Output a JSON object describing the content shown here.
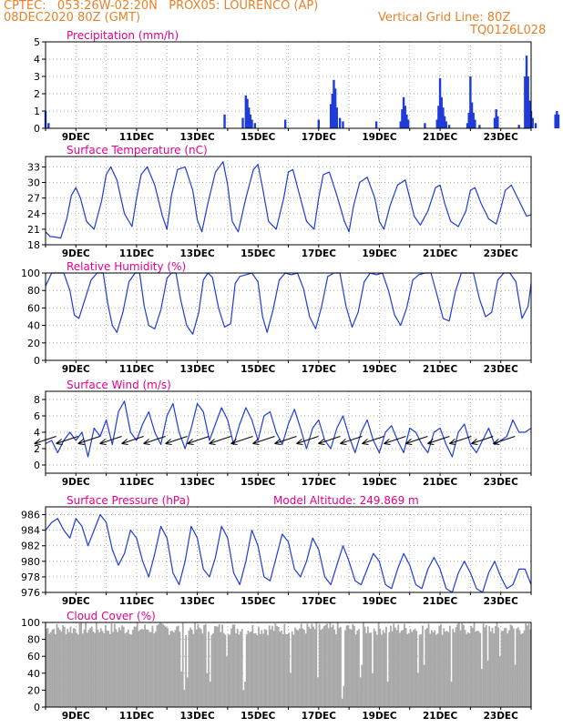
{
  "header": {
    "line1": "CPTEC:   053:26W-02:20N   PROX05: LOURENCO (AP)",
    "line2": "08DEC2020 80Z (GMT)",
    "grid_note": "Vertical Grid Line: 80Z",
    "code": "TQ0126L028"
  },
  "colors": {
    "header": "#e8822a",
    "title": "#e6008c",
    "series": "#1f3bd8",
    "cloud": "#a9a9a9",
    "grid": "#999999"
  },
  "chart_data": [
    {
      "type": "bar",
      "title": "Precipitation (mm/h)",
      "xlabel": "",
      "ylabel": "",
      "ylim": [
        0,
        5
      ],
      "yticks": [
        0,
        1,
        2,
        3,
        4,
        5
      ],
      "xtick_labels": [
        "9DEC",
        "11DEC",
        "13DEC",
        "15DEC",
        "17DEC",
        "19DEC",
        "21DEC",
        "23DEC"
      ],
      "grid": true,
      "bars": [
        [
          8.0,
          1.0
        ],
        [
          8.1,
          0.3
        ],
        [
          13.9,
          0.8
        ],
        [
          14.5,
          0.6
        ],
        [
          14.6,
          1.9
        ],
        [
          14.65,
          1.7
        ],
        [
          14.7,
          1.2
        ],
        [
          14.75,
          0.8
        ],
        [
          14.8,
          0.5
        ],
        [
          14.9,
          0.3
        ],
        [
          15.9,
          0.5
        ],
        [
          17.0,
          0.5
        ],
        [
          17.4,
          1.4
        ],
        [
          17.45,
          2.0
        ],
        [
          17.5,
          2.8
        ],
        [
          17.55,
          2.3
        ],
        [
          17.6,
          1.2
        ],
        [
          17.7,
          0.6
        ],
        [
          17.8,
          0.4
        ],
        [
          18.9,
          0.4
        ],
        [
          19.7,
          0.4
        ],
        [
          19.75,
          1.1
        ],
        [
          19.8,
          1.8
        ],
        [
          19.85,
          1.3
        ],
        [
          19.9,
          0.8
        ],
        [
          19.95,
          0.5
        ],
        [
          20.5,
          0.3
        ],
        [
          20.9,
          0.5
        ],
        [
          20.95,
          1.3
        ],
        [
          21.0,
          2.9
        ],
        [
          21.05,
          1.8
        ],
        [
          21.1,
          1.2
        ],
        [
          21.15,
          0.7
        ],
        [
          21.2,
          0.4
        ],
        [
          21.3,
          0.2
        ],
        [
          21.9,
          0.3
        ],
        [
          21.95,
          0.9
        ],
        [
          22.0,
          3.0
        ],
        [
          22.05,
          1.5
        ],
        [
          22.1,
          0.9
        ],
        [
          22.15,
          0.5
        ],
        [
          22.3,
          0.2
        ],
        [
          22.8,
          0.6
        ],
        [
          22.85,
          1.1
        ],
        [
          22.9,
          0.7
        ],
        [
          23.6,
          0.2
        ],
        [
          23.8,
          3.0
        ],
        [
          23.85,
          4.2
        ],
        [
          23.9,
          3.0
        ],
        [
          23.95,
          1.6
        ],
        [
          24.0,
          1.0
        ],
        [
          24.05,
          0.6
        ],
        [
          24.15,
          0.3
        ],
        [
          24.8,
          0.8
        ],
        [
          24.85,
          1.0
        ],
        [
          24.9,
          0.8
        ]
      ]
    },
    {
      "type": "line",
      "title": "Surface Temperature (nC)",
      "ylim": [
        18,
        35
      ],
      "yticks": [
        18,
        21,
        24,
        27,
        30,
        33
      ],
      "xtick_labels": [
        "9DEC",
        "11DEC",
        "13DEC",
        "15DEC",
        "17DEC",
        "19DEC",
        "21DEC",
        "23DEC"
      ],
      "grid": true,
      "series": [
        {
          "x": [
            8.0,
            8.15,
            8.3,
            8.5,
            8.7,
            8.85,
            9.0,
            9.15,
            9.35,
            9.6,
            9.85,
            10.0,
            10.15,
            10.35,
            10.6,
            10.85,
            11.0,
            11.15,
            11.35,
            11.6,
            11.85,
            12.0,
            12.15,
            12.35,
            12.6,
            12.85,
            13.0,
            13.15,
            13.35,
            13.6,
            13.85,
            14.0,
            14.15,
            14.35,
            14.6,
            14.85,
            15.0,
            15.15,
            15.35,
            15.6,
            15.85,
            16.0,
            16.15,
            16.35,
            16.6,
            16.85,
            17.0,
            17.15,
            17.35,
            17.6,
            17.85,
            18.0,
            18.15,
            18.35,
            18.6,
            18.85,
            19.0,
            19.15,
            19.35,
            19.6,
            19.85,
            20.0,
            20.15,
            20.35,
            20.6,
            20.85,
            21.0,
            21.15,
            21.35,
            21.6,
            21.85,
            22.0,
            22.15,
            22.35,
            22.6,
            22.85,
            23.0,
            23.15,
            23.35,
            23.6,
            23.85,
            24.0
          ],
          "y": [
            20.5,
            19.6,
            19.5,
            19.3,
            23.0,
            27.5,
            29.0,
            27.0,
            22.5,
            21.0,
            26.5,
            31.5,
            33.0,
            30.5,
            24.0,
            21.5,
            27.0,
            31.5,
            33.0,
            29.5,
            23.5,
            21.0,
            27.5,
            32.5,
            33.0,
            28.5,
            22.8,
            20.5,
            26.0,
            32.0,
            34.0,
            29.5,
            22.5,
            20.5,
            27.0,
            32.5,
            33.5,
            29.0,
            22.5,
            21.0,
            27.0,
            32.0,
            32.5,
            28.0,
            22.5,
            21.0,
            27.0,
            31.5,
            32.0,
            27.5,
            22.5,
            20.5,
            25.5,
            30.0,
            31.0,
            27.0,
            22.5,
            21.0,
            25.5,
            29.5,
            30.5,
            27.0,
            23.5,
            21.8,
            24.5,
            29.0,
            29.5,
            26.0,
            22.5,
            21.5,
            24.5,
            28.5,
            29.0,
            26.0,
            23.0,
            22.0,
            25.0,
            28.5,
            29.5,
            26.5,
            23.5,
            23.8
          ]
        }
      ]
    },
    {
      "type": "line",
      "title": "Relative Humidity (%)",
      "ylim": [
        0,
        100
      ],
      "yticks": [
        0,
        20,
        40,
        60,
        80,
        100
      ],
      "xtick_labels": [
        "9DEC",
        "11DEC",
        "13DEC",
        "15DEC",
        "17DEC",
        "19DEC",
        "21DEC",
        "23DEC"
      ],
      "grid": true,
      "series": [
        {
          "x": [
            8.0,
            8.2,
            8.4,
            8.6,
            8.8,
            8.95,
            9.1,
            9.3,
            9.5,
            9.7,
            9.9,
            10.05,
            10.2,
            10.35,
            10.55,
            10.75,
            10.95,
            11.1,
            11.25,
            11.4,
            11.6,
            11.8,
            12.0,
            12.15,
            12.3,
            12.45,
            12.65,
            12.85,
            13.05,
            13.2,
            13.35,
            13.5,
            13.7,
            13.9,
            14.1,
            14.25,
            14.4,
            14.6,
            14.8,
            15.0,
            15.15,
            15.3,
            15.5,
            15.7,
            15.9,
            16.1,
            16.3,
            16.5,
            16.7,
            16.9,
            17.1,
            17.3,
            17.5,
            17.7,
            17.9,
            18.1,
            18.3,
            18.5,
            18.7,
            18.9,
            19.1,
            19.3,
            19.5,
            19.7,
            19.9,
            20.1,
            20.3,
            20.5,
            20.7,
            20.9,
            21.1,
            21.3,
            21.5,
            21.7,
            21.9,
            22.1,
            22.3,
            22.5,
            22.7,
            22.9,
            23.1,
            23.3,
            23.5,
            23.7,
            23.9,
            24.0
          ],
          "y": [
            85,
            100,
            100,
            100,
            80,
            52,
            48,
            70,
            92,
            100,
            100,
            65,
            40,
            32,
            55,
            90,
            100,
            100,
            62,
            40,
            36,
            58,
            94,
            100,
            100,
            70,
            40,
            30,
            55,
            92,
            100,
            95,
            60,
            38,
            42,
            88,
            96,
            98,
            100,
            90,
            50,
            32,
            58,
            92,
            100,
            98,
            100,
            82,
            50,
            36,
            62,
            96,
            100,
            100,
            62,
            38,
            55,
            90,
            100,
            98,
            100,
            80,
            52,
            40,
            60,
            92,
            98,
            100,
            100,
            75,
            48,
            45,
            78,
            100,
            100,
            100,
            70,
            50,
            55,
            92,
            100,
            100,
            90,
            48,
            62,
            88
          ]
        }
      ]
    },
    {
      "type": "line",
      "title": "Surface Wind (m/s)",
      "ylim": [
        -1,
        9
      ],
      "yticks": [
        0,
        2,
        4,
        6,
        8
      ],
      "xtick_labels": [
        "9DEC",
        "11DEC",
        "13DEC",
        "15DEC",
        "17DEC",
        "19DEC",
        "21DEC",
        "23DEC"
      ],
      "grid": true,
      "series": [
        {
          "x": [
            8.0,
            8.2,
            8.4,
            8.6,
            8.8,
            9.0,
            9.2,
            9.4,
            9.6,
            9.8,
            10.0,
            10.2,
            10.4,
            10.6,
            10.8,
            11.0,
            11.2,
            11.4,
            11.6,
            11.8,
            12.0,
            12.2,
            12.4,
            12.6,
            12.8,
            13.0,
            13.2,
            13.4,
            13.6,
            13.8,
            14.0,
            14.2,
            14.4,
            14.6,
            14.8,
            15.0,
            15.2,
            15.4,
            15.6,
            15.8,
            16.0,
            16.2,
            16.4,
            16.6,
            16.8,
            17.0,
            17.2,
            17.4,
            17.6,
            17.8,
            18.0,
            18.2,
            18.4,
            18.6,
            18.8,
            19.0,
            19.2,
            19.4,
            19.6,
            19.8,
            20.0,
            20.2,
            20.4,
            20.6,
            20.8,
            21.0,
            21.2,
            21.4,
            21.6,
            21.8,
            22.0,
            22.2,
            22.4,
            22.6,
            22.8,
            23.0,
            23.2,
            23.4,
            23.6,
            23.8,
            24.0
          ],
          "y": [
            2.6,
            3.0,
            1.5,
            3.0,
            4.0,
            3.0,
            4.0,
            1.0,
            4.5,
            3.5,
            5.5,
            2.5,
            6.5,
            7.8,
            4.0,
            3.0,
            5.0,
            6.5,
            4.0,
            2.5,
            6.0,
            7.5,
            4.0,
            2.0,
            4.5,
            7.5,
            6.5,
            3.0,
            5.0,
            7.0,
            5.5,
            2.5,
            5.0,
            7.0,
            5.5,
            3.0,
            6.0,
            6.5,
            4.0,
            2.5,
            5.0,
            6.8,
            4.5,
            2.0,
            4.5,
            5.5,
            3.0,
            2.0,
            4.5,
            6.0,
            3.5,
            1.5,
            4.0,
            5.5,
            3.0,
            1.5,
            4.0,
            4.8,
            3.0,
            1.5,
            4.5,
            4.0,
            2.5,
            1.5,
            4.0,
            4.5,
            2.5,
            1.0,
            4.0,
            5.0,
            2.5,
            1.5,
            3.0,
            4.5,
            2.5,
            3.0,
            3.5,
            5.5,
            4.0,
            4.0,
            4.5
          ]
        }
      ]
    },
    {
      "type": "line",
      "title": "Surface Pressure (hPa)",
      "annotation": "Model Altitude: 249.869  m",
      "ylim": [
        976,
        987
      ],
      "yticks": [
        976,
        978,
        980,
        982,
        984,
        986
      ],
      "xtick_labels": [
        "9DEC",
        "11DEC",
        "13DEC",
        "15DEC",
        "17DEC",
        "19DEC",
        "21DEC",
        "23DEC"
      ],
      "grid": true,
      "series": [
        {
          "x": [
            8.0,
            8.2,
            8.4,
            8.6,
            8.8,
            9.0,
            9.2,
            9.4,
            9.6,
            9.8,
            10.0,
            10.2,
            10.4,
            10.6,
            10.8,
            11.0,
            11.2,
            11.4,
            11.6,
            11.8,
            12.0,
            12.2,
            12.4,
            12.6,
            12.8,
            13.0,
            13.2,
            13.4,
            13.6,
            13.8,
            14.0,
            14.2,
            14.4,
            14.6,
            14.8,
            15.0,
            15.2,
            15.4,
            15.6,
            15.8,
            16.0,
            16.2,
            16.4,
            16.6,
            16.8,
            17.0,
            17.2,
            17.4,
            17.6,
            17.8,
            18.0,
            18.2,
            18.4,
            18.6,
            18.8,
            19.0,
            19.2,
            19.4,
            19.6,
            19.8,
            20.0,
            20.2,
            20.4,
            20.6,
            20.8,
            21.0,
            21.2,
            21.4,
            21.6,
            21.8,
            22.0,
            22.2,
            22.4,
            22.6,
            22.8,
            23.0,
            23.2,
            23.4,
            23.6,
            23.8,
            24.0
          ],
          "y": [
            984,
            985,
            985.5,
            984,
            983,
            985.5,
            984.5,
            982,
            984,
            986,
            985,
            981.5,
            979.5,
            981,
            984,
            983,
            980,
            978,
            981,
            984.5,
            983,
            978.5,
            977,
            980,
            984.5,
            983,
            979,
            978,
            980.5,
            984.5,
            983,
            978.5,
            977,
            980,
            984,
            982,
            978,
            977.5,
            980.5,
            983.5,
            982.5,
            979,
            978,
            980,
            983,
            981.5,
            978,
            977,
            979.5,
            982,
            980,
            977.5,
            977,
            979,
            981,
            980,
            977,
            976.5,
            979,
            981,
            979.5,
            977,
            976.5,
            979,
            980.5,
            979,
            976.5,
            976,
            978.5,
            980,
            978.5,
            976.5,
            976,
            978.5,
            980,
            978,
            976.5,
            977,
            979,
            979,
            977
          ]
        }
      ]
    },
    {
      "type": "bar",
      "title": "Cloud Cover (%)",
      "ylim": [
        0,
        100
      ],
      "yticks": [
        0,
        20,
        40,
        60,
        80,
        100
      ],
      "xtick_labels": [
        "9DEC",
        "11DEC",
        "13DEC",
        "15DEC",
        "17DEC",
        "19DEC",
        "21DEC",
        "23DEC"
      ],
      "grid": true,
      "typical_range": [
        85,
        100
      ],
      "dips": [
        [
          12.5,
          42
        ],
        [
          12.6,
          20
        ],
        [
          12.7,
          35
        ],
        [
          13.35,
          40
        ],
        [
          13.45,
          30
        ],
        [
          14.0,
          60
        ],
        [
          14.55,
          20
        ],
        [
          14.6,
          30
        ],
        [
          16.1,
          40
        ],
        [
          17.0,
          35
        ],
        [
          17.8,
          10
        ],
        [
          17.85,
          25
        ],
        [
          18.4,
          35
        ],
        [
          18.45,
          50
        ],
        [
          18.8,
          40
        ],
        [
          19.3,
          30
        ],
        [
          20.3,
          40
        ],
        [
          20.5,
          50
        ],
        [
          21.4,
          30
        ],
        [
          22.4,
          45
        ],
        [
          22.6,
          55
        ],
        [
          23.0,
          60
        ],
        [
          23.5,
          50
        ]
      ]
    }
  ]
}
